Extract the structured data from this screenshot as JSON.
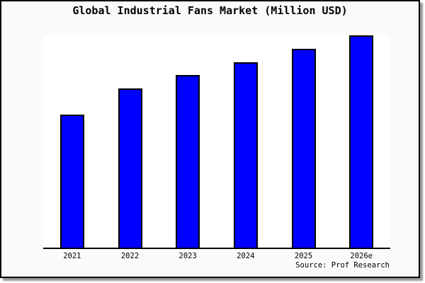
{
  "chart": {
    "title": "Global Industrial Fans Market (Million USD)",
    "source": "Source: Prof Research"
  },
  "colors": {
    "bar_fill": "#0000ff",
    "bar_border": "#000000",
    "frame_background": "#fafafa",
    "plot_background": "#ffffff",
    "axis": "#000000",
    "shadow": "#999999"
  },
  "chart_data": {
    "type": "bar",
    "title": "Global Industrial Fans Market (Million USD)",
    "categories": [
      "2021",
      "2022",
      "2023",
      "2024",
      "2025",
      "2026e"
    ],
    "values_relative_pct": [
      62.8,
      75.1,
      81.4,
      87.4,
      93.7,
      100
    ],
    "value_note": "No y-axis scale, gridlines or data labels are shown; values are bar heights as percent of the tallest bar (2026e = 100)",
    "xlabel": "",
    "ylabel": "",
    "y_axis_visible": false,
    "gridlines": false,
    "legend": false,
    "annotation": "Source: Prof Research"
  }
}
